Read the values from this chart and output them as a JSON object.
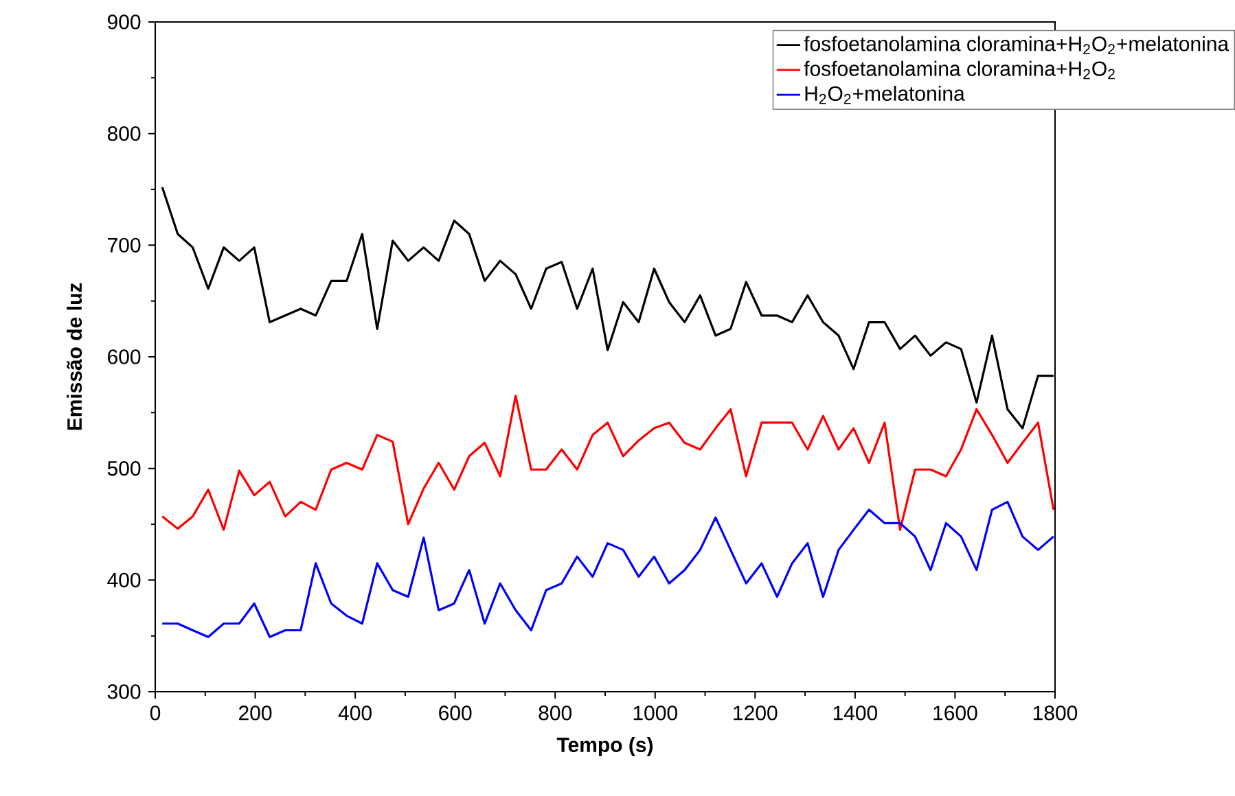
{
  "chart_data": {
    "type": "line",
    "xlabel": "Tempo (s)",
    "ylabel": "Emissão de luz",
    "x": [
      14,
      45,
      75,
      106,
      137,
      168,
      198,
      229,
      260,
      291,
      321,
      352,
      383,
      414,
      444,
      475,
      506,
      537,
      567,
      598,
      628,
      659,
      690,
      721,
      752,
      782,
      813,
      844,
      875,
      905,
      936,
      967,
      998,
      1028,
      1059,
      1090,
      1121,
      1151,
      1182,
      1213,
      1244,
      1274,
      1305,
      1336,
      1367,
      1397,
      1428,
      1459,
      1490,
      1520,
      1551,
      1582,
      1612,
      1643,
      1674,
      1705,
      1735,
      1766,
      1797
    ],
    "series": [
      {
        "name": "fosfoetanolamina cloramina+H$_{2}$O$_{2}$+melatonina",
        "color": "#000000",
        "values": [
          752,
          710,
          698,
          661,
          698,
          686,
          698,
          631,
          637,
          643,
          637,
          668,
          668,
          710,
          625,
          704,
          686,
          698,
          686,
          722,
          710,
          668,
          686,
          674,
          643,
          679,
          685,
          643,
          679,
          606,
          649,
          631,
          679,
          649,
          631,
          655,
          619,
          625,
          667,
          637,
          637,
          631,
          655,
          631,
          619,
          589,
          631,
          631,
          607,
          619,
          601,
          613,
          607,
          559,
          619,
          553,
          536,
          583,
          583
        ]
      },
      {
        "name": "fosfoetanolamina cloramina+H$_{2}$O$_{2}$",
        "color": "#ff0000",
        "values": [
          457,
          446,
          457,
          481,
          445,
          498,
          476,
          488,
          457,
          470,
          463,
          499,
          505,
          499,
          530,
          524,
          450,
          482,
          505,
          481,
          511,
          523,
          493,
          565,
          499,
          499,
          517,
          499,
          530,
          541,
          511,
          525,
          536,
          541,
          523,
          517,
          536,
          553,
          493,
          541,
          541,
          541,
          517,
          547,
          517,
          536,
          505,
          541,
          445,
          499,
          499,
          493,
          517,
          553,
          530,
          505,
          523,
          541,
          463
        ]
      },
      {
        "name": "H$_{2}$O$_{2}$+melatonina",
        "color": "#0000ff",
        "values": [
          361,
          361,
          355,
          349,
          361,
          361,
          379,
          349,
          355,
          355,
          415,
          379,
          368,
          361,
          415,
          391,
          385,
          438,
          373,
          379,
          409,
          361,
          397,
          373,
          355,
          391,
          397,
          421,
          403,
          433,
          427,
          403,
          421,
          397,
          409,
          427,
          456,
          427,
          397,
          415,
          385,
          415,
          433,
          385,
          427,
          445,
          463,
          451,
          451,
          439,
          409,
          451,
          439,
          409,
          463,
          470,
          439,
          427,
          439
        ]
      }
    ],
    "xlim": [
      0,
      1800
    ],
    "xticks": [
      0,
      200,
      400,
      600,
      800,
      1000,
      1200,
      1400,
      1600,
      1800
    ],
    "ylim": [
      300,
      900
    ],
    "yticks": [
      300,
      400,
      500,
      600,
      700,
      800,
      900
    ],
    "legend": "top right",
    "grid": false,
    "marker": "none",
    "line_style": "solid"
  }
}
